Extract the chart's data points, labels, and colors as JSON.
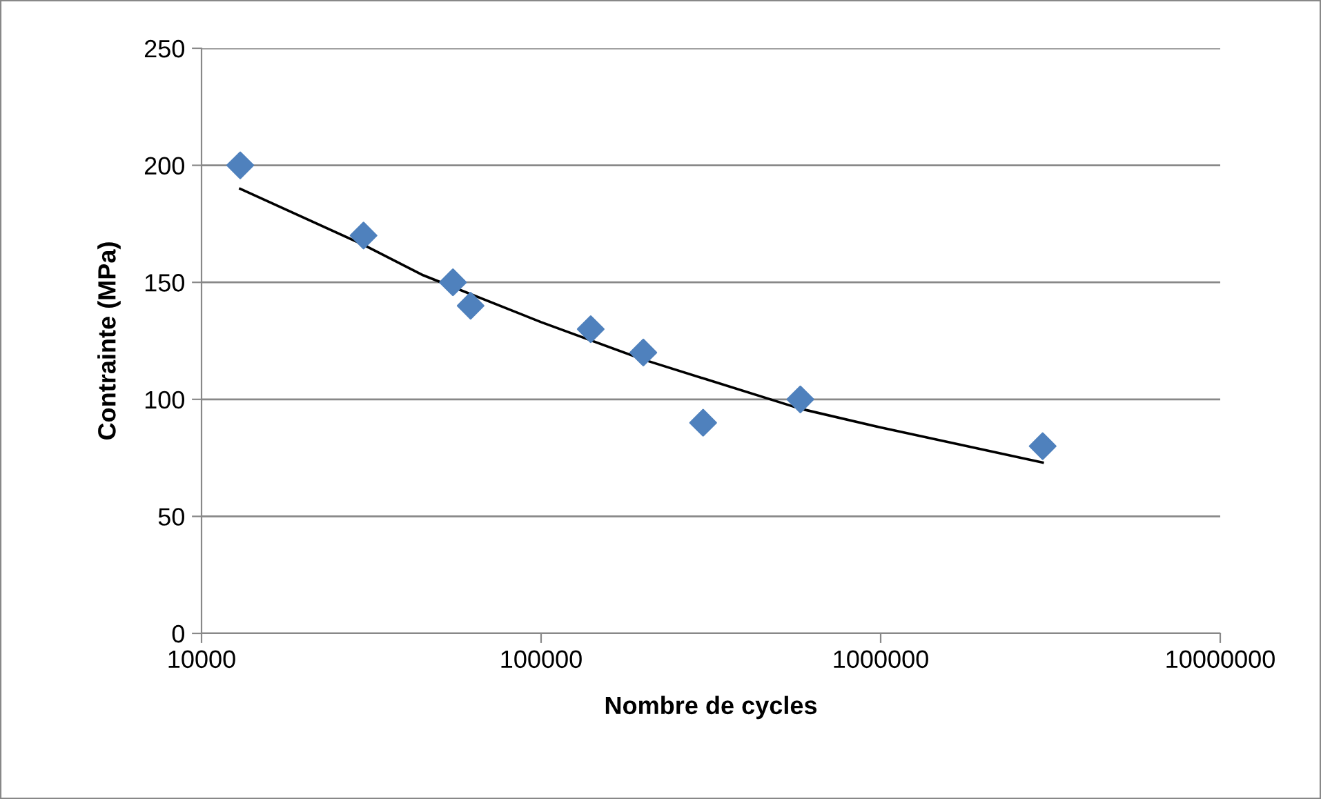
{
  "chart_data": {
    "type": "scatter",
    "xlabel": "Nombre de cycles",
    "ylabel": "Contrainte (MPa)",
    "log": "x",
    "grid": "y",
    "marker": "diamond",
    "xlim": [
      10000,
      10000000
    ],
    "xticks": [
      10000,
      100000,
      1000000,
      10000000
    ],
    "ylim": [
      0,
      250
    ],
    "yticks": [
      0,
      50,
      100,
      150,
      200,
      250
    ],
    "series": [
      {
        "color": "#4f81bd",
        "x": [
          13000,
          30000,
          55000,
          62000,
          140000,
          200000,
          300000,
          580000,
          3000000
        ],
        "values": [
          200,
          170,
          150,
          140,
          130,
          120,
          90,
          100,
          80
        ]
      },
      {
        "type": "line",
        "color": "#000000",
        "marker": "none",
        "line_style": "solid",
        "x": [
          13000,
          30000,
          45000,
          100000,
          200000,
          300000,
          580000,
          1000000,
          3000000
        ],
        "values": [
          190,
          166,
          153,
          133,
          117,
          109,
          96,
          88,
          73
        ]
      }
    ]
  }
}
